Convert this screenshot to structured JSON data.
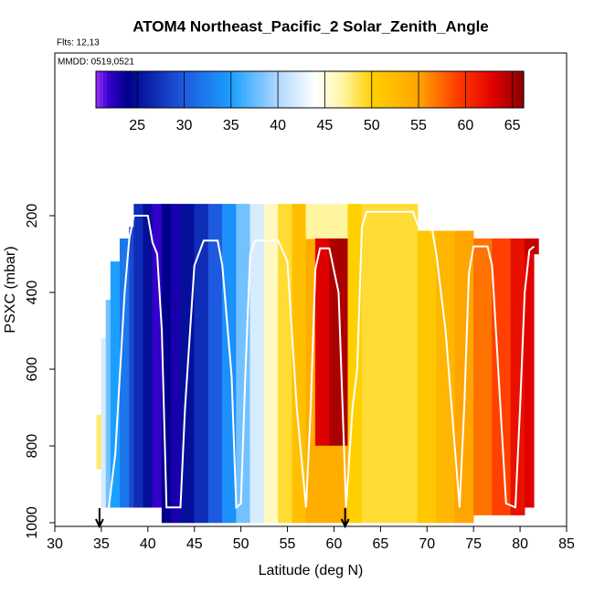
{
  "chart_data": {
    "type": "curtain",
    "title": "ATOM4 Northeast_Pacific_2 Solar_Zenith_Angle",
    "flights_label": "Flts: 12,13",
    "dates_label": "MMDD: 0519,0521",
    "x_label": "Latitude (deg N)",
    "y_label": "PSXC (mbar)",
    "xlim": [
      30,
      85
    ],
    "xticks": [
      30,
      35,
      40,
      45,
      50,
      55,
      60,
      65,
      70,
      75,
      80,
      85
    ],
    "ylim": [
      1009.5,
      -223.8
    ],
    "yticks": [
      200,
      400,
      600,
      800,
      1000
    ],
    "clim": [
      20.6,
      66.2
    ],
    "cticks": [
      25,
      30,
      35,
      40,
      45,
      50,
      55,
      60,
      65
    ],
    "colormap": {
      "stops": [
        20.6,
        22,
        24,
        30,
        35,
        40,
        44,
        47,
        50,
        55,
        59,
        63,
        66.2
      ],
      "colors": [
        "#9b30ff",
        "#3300cc",
        "#00008b",
        "#1e5ae0",
        "#1a9fff",
        "#b0d8ff",
        "#ffffff",
        "#fff5a0",
        "#ffd000",
        "#ffa500",
        "#ff4000",
        "#e00000",
        "#8b0000"
      ]
    },
    "lat_start": [
      34.5,
      35,
      35.5,
      36,
      37,
      38,
      38.5,
      39.5,
      40.5,
      41.5,
      42.5,
      43.5,
      45,
      46.5,
      48,
      49.5,
      51,
      52.5,
      54,
      55.5,
      57,
      57,
      58,
      59.5,
      58,
      61.5,
      63,
      69,
      71,
      73,
      75,
      77,
      79,
      80.5,
      80.5
    ],
    "lat_end": [
      35,
      35.5,
      36,
      37,
      38,
      38.5,
      39.5,
      40.5,
      41.5,
      42.5,
      43.5,
      45,
      46.5,
      48,
      49.5,
      51,
      52.5,
      54,
      55.5,
      57,
      58,
      61.5,
      59.5,
      61.5,
      61.5,
      63,
      69,
      71,
      73,
      75,
      77,
      79,
      80.5,
      82,
      81.5
    ],
    "p_top": [
      720,
      520,
      420,
      320,
      260,
      230,
      170,
      170,
      170,
      170,
      170,
      170,
      170,
      170,
      170,
      170,
      170,
      170,
      170,
      170,
      260,
      170,
      260,
      260,
      800,
      170,
      170,
      240,
      240,
      240,
      260,
      260,
      260,
      260,
      300
    ],
    "p_bottom": [
      860,
      960,
      960,
      960,
      960,
      960,
      960,
      960,
      960,
      1000,
      1000,
      1000,
      1000,
      1000,
      1000,
      1000,
      1000,
      1000,
      1000,
      1000,
      1000,
      260,
      800,
      800,
      1000,
      1000,
      1000,
      1000,
      1000,
      1000,
      980,
      980,
      980,
      300,
      960
    ],
    "values": [
      48,
      42,
      38,
      35,
      32,
      29,
      27,
      25,
      22,
      24,
      23,
      25,
      27,
      30,
      34,
      38,
      42,
      46,
      49,
      52,
      54,
      47,
      63,
      65,
      54,
      50,
      49,
      51,
      53,
      55,
      57,
      59,
      62,
      64,
      63
    ],
    "track": {
      "lat": [
        35.8,
        36.5,
        37.5,
        38,
        38.5,
        40,
        40.5,
        41,
        41.5,
        42,
        43.5,
        44,
        45,
        46,
        47.5,
        48,
        49,
        49.5,
        50,
        50.5,
        51,
        51.5,
        54,
        55,
        56,
        57,
        57.5,
        58,
        58.5,
        59.5,
        60.5,
        61.3,
        62,
        62.5,
        63,
        63.5,
        68.5,
        69,
        70.5,
        71,
        72,
        73.5,
        74,
        74.5,
        75,
        76.5,
        77,
        78.5,
        79.5,
        80,
        80.5,
        81,
        81.5
      ],
      "p": [
        960,
        820,
        400,
        260,
        200,
        200,
        270,
        300,
        500,
        960,
        960,
        700,
        330,
        265,
        265,
        330,
        620,
        960,
        950,
        600,
        300,
        265,
        265,
        320,
        700,
        960,
        700,
        340,
        285,
        285,
        400,
        960,
        700,
        600,
        230,
        190,
        190,
        225,
        230,
        300,
        500,
        960,
        700,
        350,
        280,
        280,
        330,
        950,
        960,
        700,
        400,
        290,
        280
      ]
    },
    "arrows": [
      34.8,
      61.2
    ]
  }
}
